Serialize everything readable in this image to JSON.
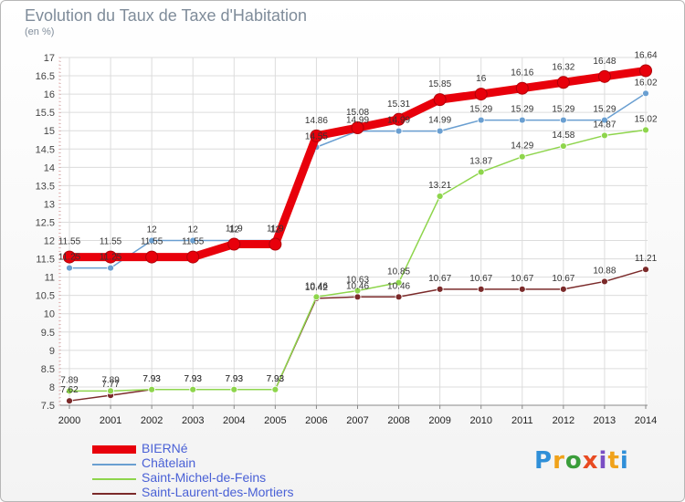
{
  "title": "Evolution du Taux de Taxe d'Habitation",
  "subtitle": "(en %)",
  "logo_text": "Proxiti",
  "chart_data": {
    "type": "line",
    "title": "Evolution du Taux de Taxe d'Habitation",
    "ylabel": "(en %)",
    "xlabel": "",
    "ylim": [
      7.5,
      17
    ],
    "y_ticks": [
      7.5,
      8,
      8.5,
      9,
      9.5,
      10,
      10.5,
      11,
      11.5,
      12,
      12.5,
      13,
      13.5,
      14,
      14.5,
      15,
      15.5,
      16,
      16.5,
      17
    ],
    "grid": true,
    "legend_position": "bottom-left",
    "categories": [
      "2000",
      "2001",
      "2002",
      "2003",
      "2004",
      "2005",
      "2006",
      "2007",
      "2008",
      "2009",
      "2010",
      "2011",
      "2012",
      "2013",
      "2014"
    ],
    "series": [
      {
        "name": "BIERNé",
        "color": "#e8000b",
        "values": [
          11.55,
          11.55,
          11.55,
          11.55,
          11.9,
          11.9,
          14.86,
          15.08,
          15.31,
          15.85,
          16,
          16.16,
          16.32,
          16.48,
          16.64
        ],
        "labels": [
          "11.55",
          "11.55",
          "11.55",
          "11.55",
          "11.9",
          "11.9",
          "14.86",
          "15.08",
          "15.31",
          "15.85",
          "16",
          "16.16",
          "16.32",
          "16.48",
          "16.64"
        ]
      },
      {
        "name": "Châtelain",
        "color": "#6a9fd1",
        "values": [
          11.25,
          11.25,
          12,
          12,
          12,
          12,
          14.55,
          14.99,
          14.99,
          14.99,
          15.29,
          15.29,
          15.29,
          15.29,
          16.02
        ],
        "labels": [
          "11.25",
          "11.25",
          "12",
          "12",
          "12",
          "12",
          "14.55",
          "14.99",
          "14.99",
          "14.99",
          "15.29",
          "15.29",
          "15.29",
          "15.29",
          "16.02"
        ]
      },
      {
        "name": "Saint-Michel-de-Feins",
        "color": "#8ed54c",
        "values": [
          7.89,
          7.89,
          7.93,
          7.93,
          7.93,
          7.93,
          10.46,
          10.63,
          10.85,
          13.21,
          13.87,
          14.29,
          14.58,
          14.87,
          15.02
        ],
        "labels": [
          "7.89",
          "7.89",
          "7.93",
          "7.93",
          "7.93",
          "7.93",
          "10.46",
          "10.63",
          "10.85",
          "13.21",
          "13.87",
          "14.29",
          "14.58",
          "14.87",
          "15.02"
        ]
      },
      {
        "name": "Saint-Laurent-des-Mortiers",
        "color": "#7b2a2a",
        "values": [
          7.62,
          7.77,
          7.93,
          7.93,
          7.93,
          7.93,
          10.42,
          10.46,
          10.46,
          10.67,
          10.67,
          10.67,
          10.67,
          10.88,
          11.21
        ],
        "labels": [
          "7.62",
          "7.77",
          "7.93",
          "7.93",
          "7.93",
          "7.93",
          "10.42",
          "10.46",
          "10.46",
          "10.67",
          "10.67",
          "10.67",
          "10.67",
          "10.88",
          "11.21"
        ]
      }
    ]
  }
}
